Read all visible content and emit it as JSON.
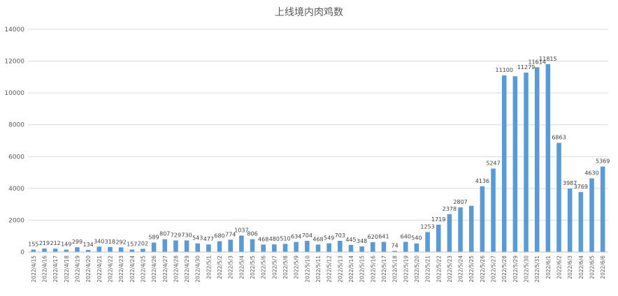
{
  "chart_data": {
    "type": "bar",
    "title": "上线境内肉鸡数",
    "xlabel": "",
    "ylabel": "",
    "ylim": [
      0,
      14000
    ],
    "yticks": [
      0,
      2000,
      4000,
      6000,
      8000,
      10000,
      12000,
      14000
    ],
    "grid": true,
    "legend": "none",
    "bar_color": "#5b9bd5",
    "categories": [
      "2022/4/15",
      "2022/4/16",
      "2022/4/17",
      "2022/4/18",
      "2022/4/19",
      "2022/4/20",
      "2022/4/21",
      "2022/4/22",
      "2022/4/23",
      "2022/4/24",
      "2022/4/25",
      "2022/4/26",
      "2022/4/27",
      "2022/4/28",
      "2022/4/29",
      "2022/4/30",
      "2022/5/1",
      "2022/5/2",
      "2022/5/3",
      "2022/5/4",
      "2022/5/5",
      "2022/5/6",
      "2022/5/7",
      "2022/5/8",
      "2022/5/9",
      "2022/5/10",
      "2022/5/11",
      "2022/5/12",
      "2022/5/13",
      "2022/5/14",
      "2022/5/15",
      "2022/5/16",
      "2022/5/17",
      "2022/5/18",
      "2022/5/19",
      "2022/5/20",
      "2022/5/21",
      "2022/5/22",
      "2022/5/23",
      "2022/5/24",
      "2022/5/25",
      "2022/5/26",
      "2022/5/27",
      "2022/5/28",
      "2022/5/29",
      "2022/5/30",
      "2022/5/31",
      "2022/6/1",
      "2022/6/2",
      "2022/6/3",
      "2022/6/4",
      "2022/6/5",
      "2022/6/6"
    ],
    "values": [
      155,
      219,
      212,
      149,
      299,
      134,
      340,
      318,
      292,
      157,
      202,
      589,
      807,
      729,
      730,
      543,
      477,
      680,
      774,
      1037,
      806,
      468,
      480,
      510,
      634,
      704,
      468,
      549,
      703,
      445,
      348,
      620,
      641,
      74,
      640,
      540,
      1253,
      1719,
      2378,
      2807,
      2906,
      4136,
      5247,
      11100,
      11051,
      11279,
      11614,
      11815,
      6863,
      3987,
      3769,
      4630,
      5369
    ],
    "data_labels": [
      "155",
      "219",
      "212",
      "149",
      "299",
      "134",
      "340",
      "318",
      "292",
      "157",
      "202",
      "589",
      "807",
      "729",
      "730",
      "543",
      "477",
      "680",
      "774",
      "1037",
      "806",
      "468",
      "480",
      "510",
      "634",
      "704",
      "468",
      "549",
      "703",
      "445",
      "348",
      "620",
      "641",
      "74",
      "640",
      "540",
      "1253",
      "1719",
      "2378",
      "2807",
      "",
      "4136",
      "5247",
      "11100",
      "",
      "11279",
      "11614",
      "11815",
      "6863",
      "3987",
      "3769",
      "4630",
      "5369"
    ]
  }
}
